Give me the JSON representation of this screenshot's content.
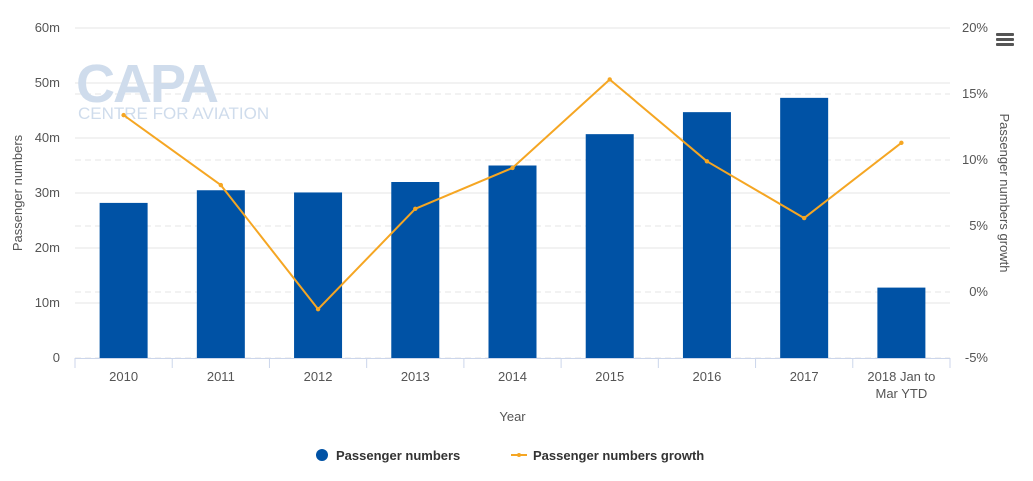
{
  "chart_data": {
    "type": "bar",
    "categories": [
      "2010",
      "2011",
      "2012",
      "2013",
      "2014",
      "2015",
      "2016",
      "2017",
      [
        "2018 Jan to",
        "Mar YTD"
      ]
    ],
    "series": [
      {
        "name": "Passenger numbers",
        "type": "bar",
        "axis": "left",
        "color": "#0052a5",
        "values": [
          28.2,
          30.5,
          30.1,
          32.0,
          35.0,
          40.7,
          44.7,
          47.3,
          12.8
        ]
      },
      {
        "name": "Passenger numbers growth",
        "type": "line",
        "axis": "right",
        "color": "#f5a623",
        "values": [
          13.4,
          8.1,
          -1.3,
          6.3,
          9.4,
          16.1,
          9.9,
          5.6,
          11.3
        ]
      }
    ],
    "xlabel": "Year",
    "ylabel": "Passenger numbers",
    "y2label": "Passenger numbers growth",
    "ylim": [
      0,
      60
    ],
    "yticks": [
      "0",
      "10m",
      "20m",
      "30m",
      "40m",
      "50m",
      "60m"
    ],
    "y2lim": [
      -5,
      20
    ],
    "y2ticks": [
      "-5%",
      "0%",
      "5%",
      "10%",
      "15%",
      "20%"
    ],
    "grid": true,
    "legend": "bottom-center"
  },
  "watermark": {
    "main": "CAPA",
    "sub": "CENTRE FOR AVIATION"
  },
  "menu_icon": "hamburger-menu-icon"
}
